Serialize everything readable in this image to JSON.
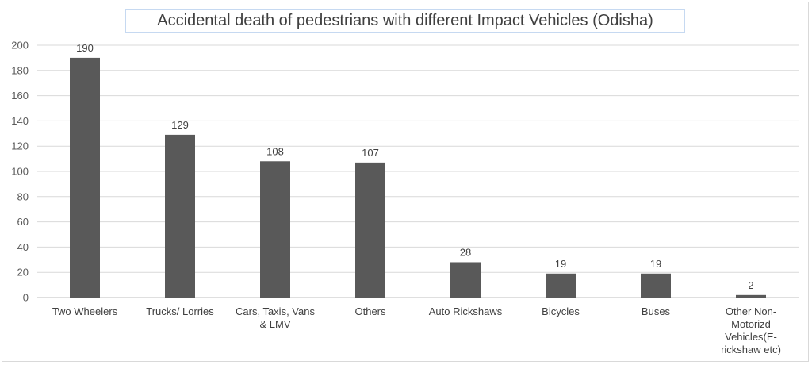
{
  "chart_data": {
    "type": "bar",
    "title": "Accidental death of pedestrians with different Impact Vehicles  (Odisha)",
    "xlabel": "",
    "ylabel": "",
    "categories": [
      [
        "Two Wheelers"
      ],
      [
        "Trucks/ Lorries"
      ],
      [
        "Cars, Taxis, Vans",
        "& LMV"
      ],
      [
        "Others"
      ],
      [
        "Auto Rickshaws"
      ],
      [
        "Bicycles"
      ],
      [
        "Buses"
      ],
      [
        "Other Non-",
        "Motorizd",
        "Vehicles(E-",
        "rickshaw etc)"
      ]
    ],
    "values": [
      190,
      129,
      108,
      107,
      28,
      19,
      19,
      2
    ],
    "data_labels": [
      "190",
      "129",
      "108",
      "107",
      "28",
      "19",
      "19",
      "2"
    ],
    "ylim": [
      0,
      200
    ],
    "yticks": [
      "0",
      "20",
      "40",
      "60",
      "80",
      "100",
      "120",
      "140",
      "160",
      "180",
      "200"
    ],
    "grid": true,
    "legend": "none",
    "colors": {
      "bar": "#595959",
      "grid": "#d9d9d9",
      "axis": "#bfbfbf"
    }
  }
}
